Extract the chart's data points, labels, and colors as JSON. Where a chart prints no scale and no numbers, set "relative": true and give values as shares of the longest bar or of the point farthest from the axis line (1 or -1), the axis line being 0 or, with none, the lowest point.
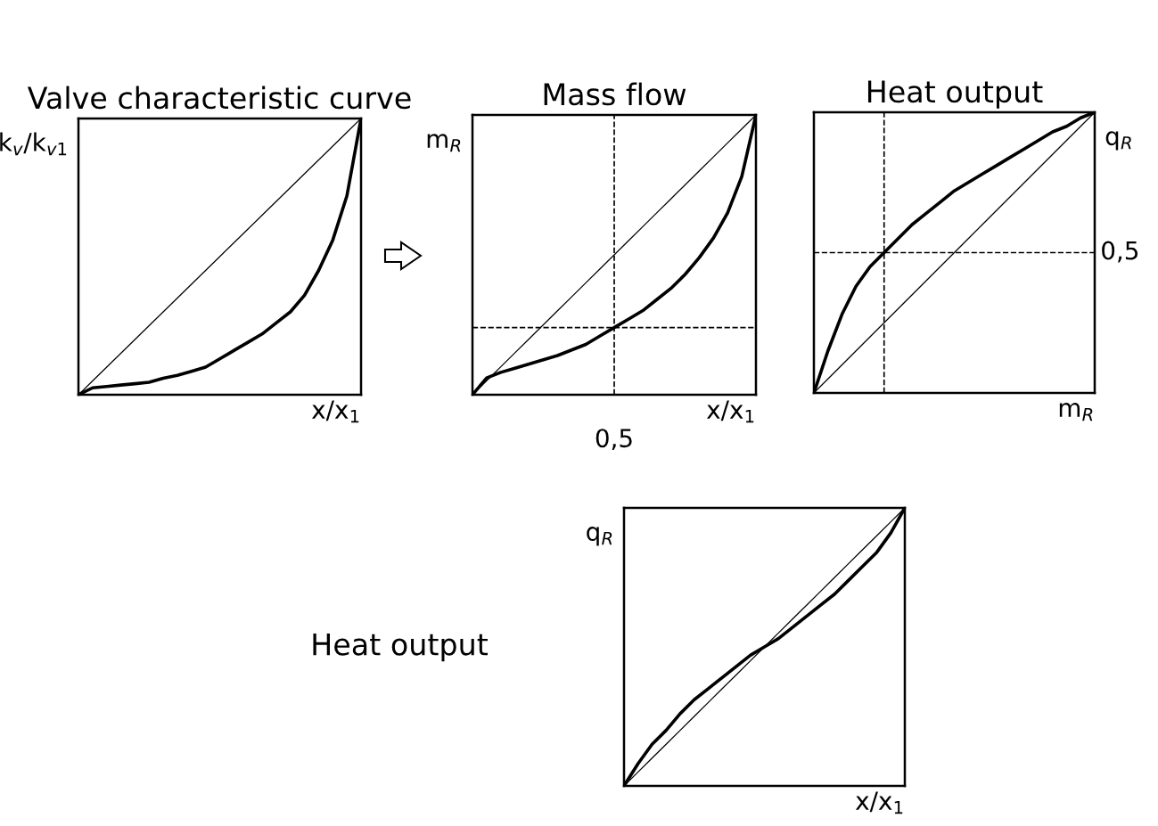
{
  "chart_data": [
    {
      "type": "line",
      "title": "Valve characteristic curve",
      "xlabel": "x/x$_{1}$",
      "ylabel": "k$_{v}$/k$_{v1}$",
      "relative": true,
      "categories": [
        null,
        null,
        null,
        null,
        null,
        null,
        null,
        null,
        null,
        null,
        null,
        null,
        null,
        null,
        null,
        null,
        null,
        null,
        null,
        null,
        null
      ],
      "series": [
        {
          "color": "#000000",
          "values": [
            0,
            0.05,
            0.1,
            0.15,
            0.2,
            0.25,
            0.3,
            0.35,
            0.4,
            0.45,
            0.5,
            0.55,
            0.6,
            0.65,
            0.7,
            0.75,
            0.8,
            0.85,
            0.9,
            0.95,
            1
          ]
        },
        {
          "color": "#000000",
          "values": [
            0,
            0.025,
            0.03,
            0.035,
            0.04,
            0.045,
            0.06,
            0.07,
            0.085,
            0.1,
            0.13,
            0.16,
            0.19,
            0.22,
            0.26,
            0.3,
            0.36,
            0.45,
            0.56,
            0.72,
            1
          ]
        }
      ]
    },
    {
      "type": "line",
      "title": "Mass flow",
      "xlabel": "x/x$_{1}$",
      "ylabel": "m$_{R}$",
      "relative": true,
      "categories": [
        null,
        null,
        null,
        null,
        null,
        null,
        null,
        null,
        null,
        null,
        null,
        null,
        null,
        null,
        null,
        null,
        null,
        null,
        null,
        null,
        null
      ],
      "series": [
        {
          "color": "#000000",
          "values": [
            0,
            0.05,
            0.1,
            0.15,
            0.2,
            0.25,
            0.3,
            0.35,
            0.4,
            0.45,
            0.5,
            0.55,
            0.6,
            0.65,
            0.7,
            0.75,
            0.8,
            0.85,
            0.9,
            0.95,
            1
          ]
        },
        {
          "color": "#000000",
          "values": [
            0,
            0.06,
            0.08,
            0.095,
            0.11,
            0.125,
            0.14,
            0.16,
            0.18,
            0.21,
            0.24,
            0.27,
            0.3,
            0.34,
            0.38,
            0.43,
            0.49,
            0.56,
            0.65,
            0.78,
            1
          ]
        }
      ],
      "annotations": [
        "0,5"
      ],
      "ref_lines": [
        {
          "axis": "y",
          "value": 0.24,
          "line_style": "dashed"
        }
      ]
    },
    {
      "type": "line",
      "title": "Heat output",
      "xlabel": "m$_{R}$",
      "ylabel": "q$_{R}$",
      "relative": true,
      "categories": [
        null,
        null,
        null,
        null,
        null,
        null,
        null,
        null,
        null,
        null,
        null,
        null,
        null,
        null,
        null,
        null,
        null,
        null,
        null,
        null,
        null
      ],
      "series": [
        {
          "color": "#000000",
          "values": [
            0,
            0.05,
            0.1,
            0.15,
            0.2,
            0.25,
            0.3,
            0.35,
            0.4,
            0.45,
            0.5,
            0.55,
            0.6,
            0.65,
            0.7,
            0.75,
            0.8,
            0.85,
            0.9,
            0.95,
            1
          ]
        },
        {
          "color": "#000000",
          "values": [
            0,
            0.15,
            0.28,
            0.38,
            0.45,
            0.5,
            0.55,
            0.6,
            0.64,
            0.68,
            0.72,
            0.75,
            0.78,
            0.81,
            0.84,
            0.87,
            0.9,
            0.93,
            0.95,
            0.98,
            1
          ]
        }
      ],
      "ref_lines": [
        {
          "axis": "y",
          "value": 0.5,
          "label": "0,5",
          "line_style": "dashed"
        }
      ]
    },
    {
      "type": "line",
      "title": "Heat output",
      "xlabel": "x/x$_{1}$",
      "ylabel": "q$_{R}$",
      "relative": true,
      "categories": [
        null,
        null,
        null,
        null,
        null,
        null,
        null,
        null,
        null,
        null,
        null,
        null,
        null,
        null,
        null,
        null,
        null,
        null,
        null,
        null,
        null
      ],
      "series": [
        {
          "color": "#000000",
          "values": [
            0,
            0.05,
            0.1,
            0.15,
            0.2,
            0.25,
            0.3,
            0.35,
            0.4,
            0.45,
            0.5,
            0.55,
            0.6,
            0.65,
            0.7,
            0.75,
            0.8,
            0.85,
            0.9,
            0.95,
            1
          ]
        },
        {
          "color": "#000000",
          "values": [
            0,
            0.08,
            0.15,
            0.2,
            0.26,
            0.31,
            0.35,
            0.39,
            0.43,
            0.47,
            0.5,
            0.53,
            0.57,
            0.61,
            0.65,
            0.69,
            0.74,
            0.79,
            0.84,
            0.91,
            1
          ]
        }
      ]
    }
  ]
}
